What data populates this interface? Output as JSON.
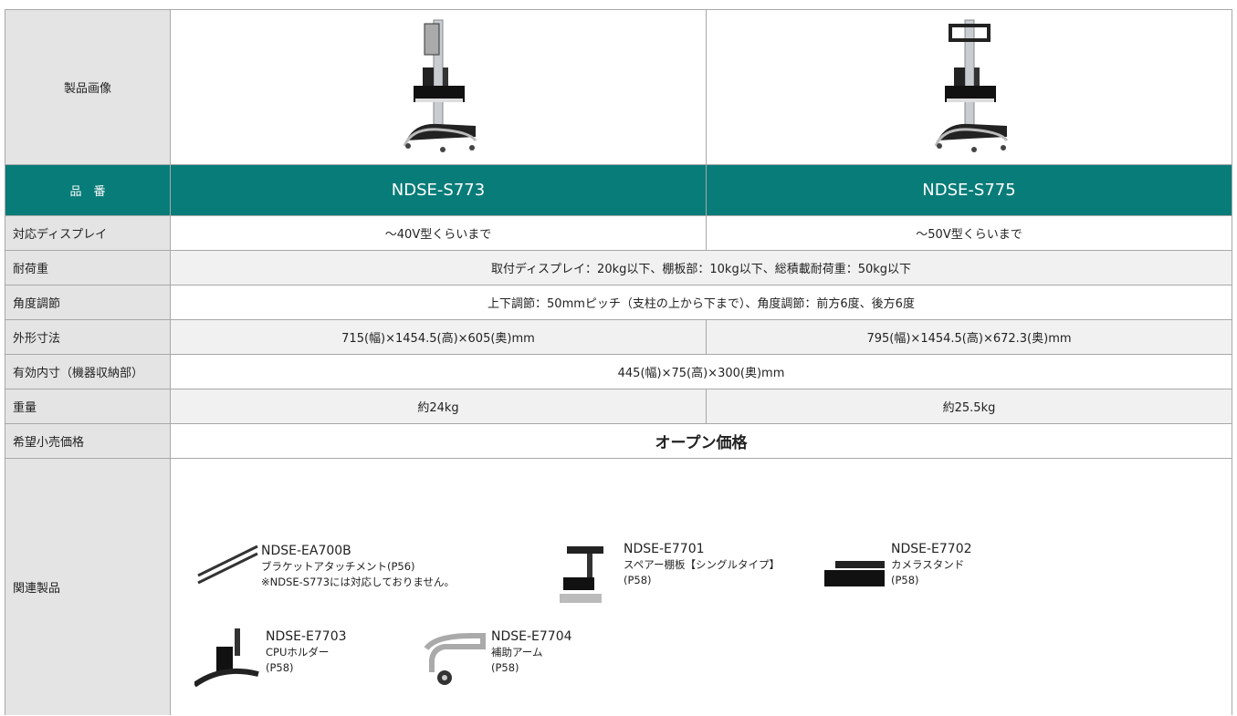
{
  "table": {
    "image_label": "製品画像",
    "header": {
      "label": "品　番",
      "cells": [
        "NDSE-S773",
        "NDSE-S775"
      ]
    },
    "rows": [
      {
        "label": "対応ディスプレイ",
        "cells": [
          "～40V型くらいまで",
          "～50V型くらいまで"
        ]
      },
      {
        "label": "耐荷重",
        "cells": [
          "取付ディスプレイ：20kg以下、棚板部：10kg以下、総積載耐荷重：50kg以下"
        ]
      },
      {
        "label": "角度調節",
        "cells": [
          "上下調節：50mmピッチ（支柱の上から下まで）、角度調節：前方6度、後方6度"
        ]
      },
      {
        "label": "外形寸法",
        "cells": [
          "715(幅)×1454.5(高)×605(奥)mm",
          "795(幅)×1454.5(高)×672.3(奥)mm"
        ]
      },
      {
        "label": "有効内寸（機器収納部）",
        "cells": [
          "445(幅)×75(高)×300(奥)mm"
        ]
      },
      {
        "label": "重量",
        "cells": [
          "約24kg",
          "約25.5kg"
        ]
      },
      {
        "label": "希望小売価格",
        "cells": [
          "オープン価格"
        ]
      }
    ],
    "related": {
      "label": "関連製品",
      "items": [
        {
          "model": "NDSE-EA700B",
          "lines": [
            "ブラケットアタッチメント(P56)",
            "※NDSE-S773には対応しておりません。"
          ]
        },
        {
          "model": "NDSE-E7701",
          "lines": [
            "スペアー棚板【シングルタイプ】",
            "(P58)"
          ]
        },
        {
          "model": "NDSE-E7702",
          "lines": [
            "カメラスタンド",
            "(P58)"
          ]
        },
        {
          "model": "NDSE-E7703",
          "lines": [
            "CPUホルダー",
            "(P58)"
          ]
        },
        {
          "model": "NDSE-E7704",
          "lines": [
            "補助アーム",
            "(P58)"
          ]
        }
      ]
    }
  }
}
